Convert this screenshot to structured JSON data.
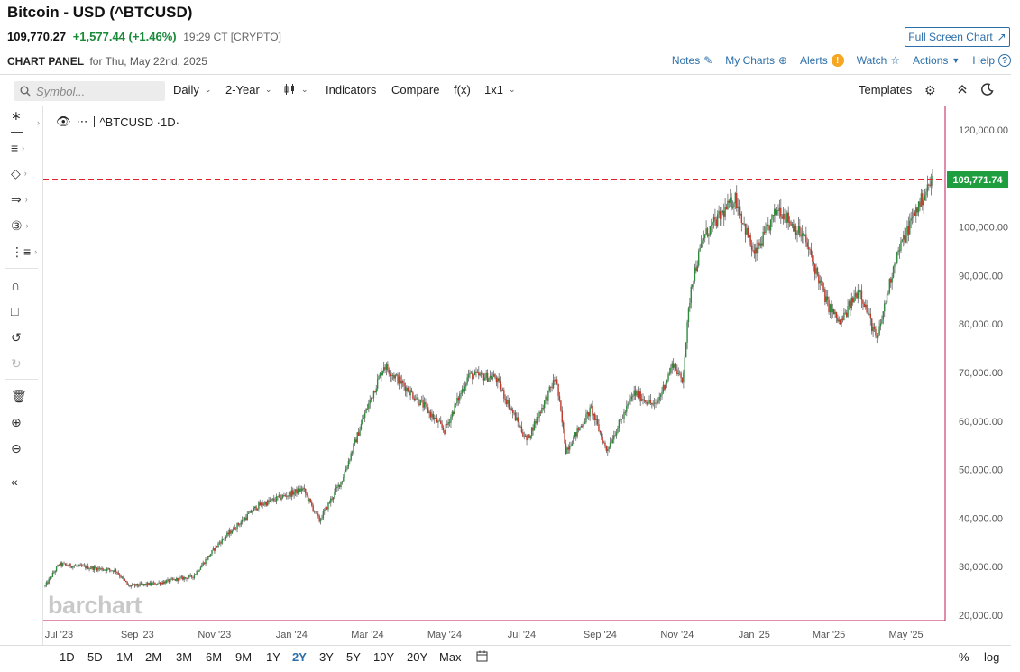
{
  "header": {
    "title": "Bitcoin - USD (^BTCUSD)",
    "price": "109,770.27",
    "change": "+1,577.44 (+1.46%)",
    "time": "19:29 CT [CRYPTO]",
    "fullscreen_label": "Full Screen Chart",
    "panel_label": "CHART PANEL",
    "panel_date": "for Thu, May 22nd, 2025",
    "links": {
      "notes": "Notes",
      "my_charts": "My Charts",
      "alerts": "Alerts",
      "watch": "Watch",
      "actions": "Actions",
      "help": "Help"
    }
  },
  "toolbar": {
    "search_placeholder": "Symbol...",
    "interval": "Daily",
    "period": "2-Year",
    "indicators": "Indicators",
    "compare": "Compare",
    "fx": "f(x)",
    "layout": "1x1",
    "templates": "Templates"
  },
  "chart_label": "^BTCUSD ·1D·",
  "watermark": "barchart",
  "colors": {
    "up": "#2e8b3e",
    "down": "#c0392b",
    "accent": "#2c6fa8",
    "last_line": "#e0202a",
    "badge": "#1e9e3e",
    "axis_line": "#c2185b"
  },
  "chart_data": {
    "type": "candlestick",
    "ylim": [
      20000,
      120000
    ],
    "y_ticks": [
      "120,000.00",
      "110,000.00",
      "100,000.00",
      "90,000.00",
      "80,000.00",
      "70,000.00",
      "60,000.00",
      "50,000.00",
      "40,000.00",
      "30,000.00",
      "20,000.00"
    ],
    "x_ticks": [
      "Jul '23",
      "Sep '23",
      "Nov '23",
      "Jan '24",
      "Mar '24",
      "May '24",
      "Jul '24",
      "Sep '24",
      "Nov '24",
      "Jan '25",
      "Mar '25",
      "May '25"
    ],
    "last_price": 109771.74,
    "last_price_label": "109,771.74",
    "x": [
      "2023-06-20",
      "2023-07-01",
      "2023-08-15",
      "2023-08-25",
      "2023-09-15",
      "2023-10-15",
      "2023-11-05",
      "2023-12-05",
      "2024-01-10",
      "2024-01-23",
      "2024-02-10",
      "2024-02-28",
      "2024-03-14",
      "2024-04-15",
      "2024-05-01",
      "2024-05-20",
      "2024-06-10",
      "2024-07-05",
      "2024-07-28",
      "2024-08-05",
      "2024-08-25",
      "2024-09-06",
      "2024-09-28",
      "2024-10-15",
      "2024-10-29",
      "2024-11-05",
      "2024-11-12",
      "2024-11-22",
      "2024-12-17",
      "2025-01-01",
      "2025-01-20",
      "2025-02-10",
      "2025-02-28",
      "2025-03-10",
      "2025-03-25",
      "2025-04-08",
      "2025-04-22",
      "2025-05-08",
      "2025-05-22"
    ],
    "values": [
      26000,
      30500,
      29200,
      26000,
      26500,
      28000,
      35000,
      42500,
      46000,
      39500,
      48000,
      61500,
      71500,
      63000,
      58000,
      69500,
      69000,
      56000,
      69000,
      54000,
      62500,
      54000,
      65800,
      63000,
      72000,
      68000,
      88000,
      98000,
      106000,
      94000,
      104000,
      97500,
      84000,
      80000,
      87500,
      76500,
      93000,
      103000,
      109771.74
    ]
  },
  "bottom": {
    "ranges": [
      "1D",
      "5D",
      "1M",
      "2M",
      "3M",
      "6M",
      "9M",
      "1Y",
      "2Y",
      "3Y",
      "5Y",
      "10Y",
      "20Y",
      "Max"
    ],
    "active_range": "2Y",
    "percent": "%",
    "log": "log"
  }
}
